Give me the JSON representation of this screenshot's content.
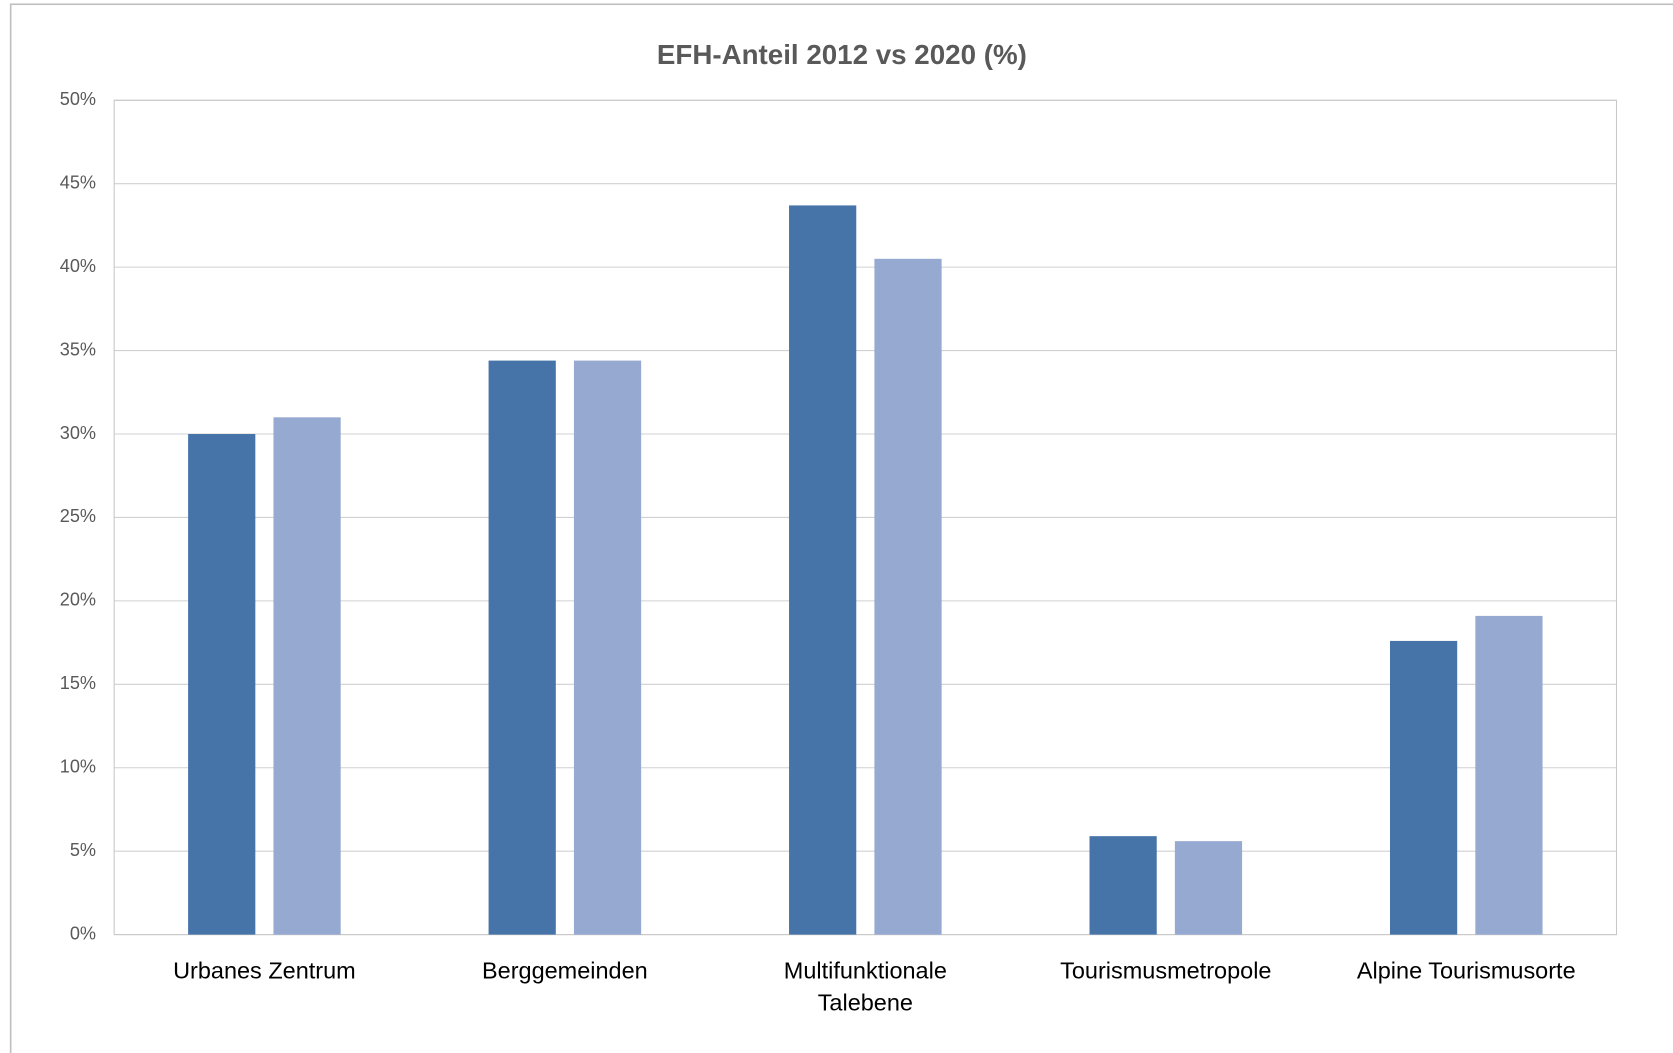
{
  "chart_data": {
    "type": "bar",
    "title": "EFH-Anteil 2012 vs 2020 (%)",
    "categories": [
      "Urbanes Zentrum",
      "Berggemeinden",
      "Multifunktionale Talebene",
      "Tourismusmetropole",
      "Alpine Tourismusorte"
    ],
    "series": [
      {
        "color": "#4673a8",
        "values": [
          30.0,
          34.4,
          43.7,
          5.9,
          17.6
        ]
      },
      {
        "color": "#95a9d1",
        "values": [
          31.0,
          34.4,
          40.5,
          5.6,
          19.1
        ]
      }
    ],
    "ylim": [
      0,
      50
    ],
    "yticks": [
      {
        "value": 0,
        "label": "0%"
      },
      {
        "value": 5,
        "label": "5%"
      },
      {
        "value": 10,
        "label": "10%"
      },
      {
        "value": 15,
        "label": "15%"
      },
      {
        "value": 20,
        "label": "20%"
      },
      {
        "value": 25,
        "label": "25%"
      },
      {
        "value": 30,
        "label": "30%"
      },
      {
        "value": 35,
        "label": "35%"
      },
      {
        "value": 40,
        "label": "40%"
      },
      {
        "value": 45,
        "label": "45%"
      },
      {
        "value": 50,
        "label": "50%"
      }
    ],
    "grid": true
  }
}
